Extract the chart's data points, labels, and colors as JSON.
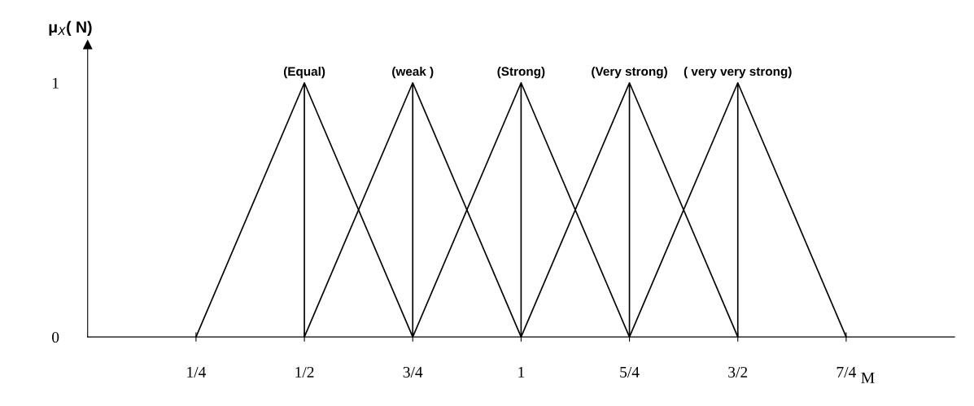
{
  "chart_data": {
    "type": "line",
    "ylabel": "μ$_{X}$( N)",
    "xlabel": "M",
    "series": [
      {
        "name": "(Equal)",
        "color": "#000000",
        "x": [
          0.25,
          0.5,
          0.5,
          0.5,
          0.75
        ],
        "values": [
          0,
          1,
          0,
          1,
          0
        ]
      },
      {
        "name": "(weak )",
        "color": "#000000",
        "x": [
          0.5,
          0.75,
          0.75,
          0.75,
          1
        ],
        "values": [
          0,
          1,
          0,
          1,
          0
        ]
      },
      {
        "name": "(Strong)",
        "color": "#000000",
        "x": [
          0.75,
          1,
          1,
          1,
          1.25
        ],
        "values": [
          0,
          1,
          0,
          1,
          0
        ]
      },
      {
        "name": "(Very strong)",
        "color": "#000000",
        "x": [
          1,
          1.25,
          1.25,
          1.25,
          1.5
        ],
        "values": [
          0,
          1,
          0,
          1,
          0
        ]
      },
      {
        "name": "( very very strong)",
        "color": "#000000",
        "x": [
          1.25,
          1.5,
          1.5,
          1.5,
          1.75
        ],
        "values": [
          0,
          1,
          0,
          1,
          0
        ]
      }
    ],
    "xlim": [
      0,
      2
    ],
    "xticks": [
      {
        "value": 0.25,
        "label": "1/4"
      },
      {
        "value": 0.5,
        "label": "1/2"
      },
      {
        "value": 0.75,
        "label": "3/4"
      },
      {
        "value": 1,
        "label": "1"
      },
      {
        "value": 1.25,
        "label": "5/4"
      },
      {
        "value": 1.5,
        "label": "3/2"
      },
      {
        "value": 1.75,
        "label": "7/4"
      }
    ],
    "ylim": [
      0,
      1.15
    ],
    "yticks": [
      0,
      1
    ],
    "grid": false,
    "legend": false,
    "marker": "none",
    "line_style": "solid"
  }
}
